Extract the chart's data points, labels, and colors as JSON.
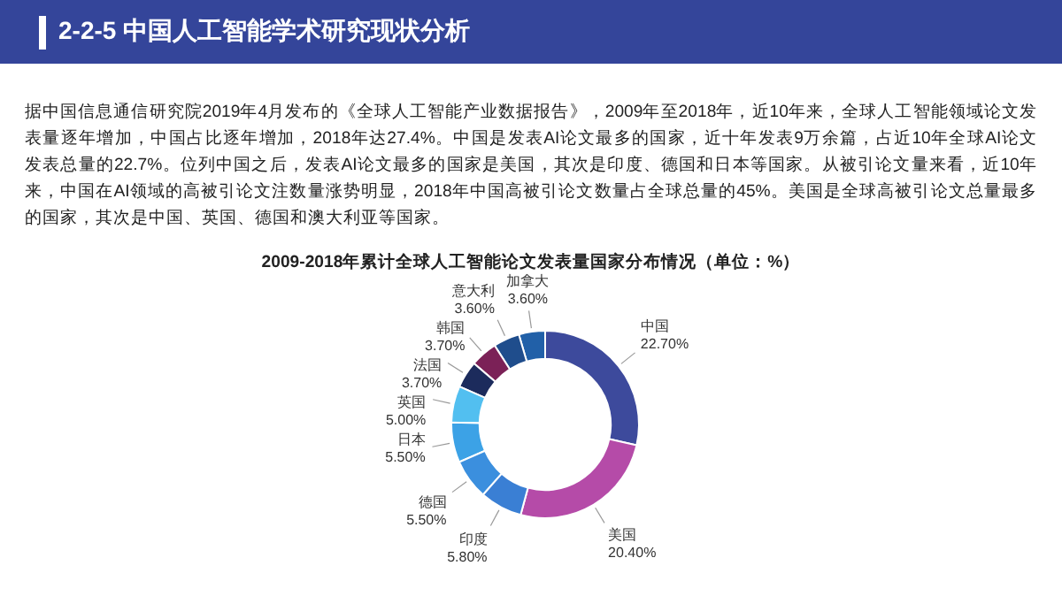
{
  "chart_data": {
    "type": "donut",
    "title": "2009-2018年累计全球人工智能论文发表量国家分布情况（单位：%）",
    "annotations": [
      "2-2-5  中国人工智能学术研究现状分析",
      "据中国信息通信研究院2019年4月发布的《全球人工智能产业数据报告》，2009年至2018年，近10年来，全球人工智能领域论文发表量逐年增加，中国占比逐年增加，2018年达27.4%。中国是发表AI论文最多的国家，近十年发表9万余篇，占近10年全球AI论文发表总量的22.7%。位列中国之后，发表AI论文最多的国家是美国，其次是印度、德国和日本等国家。从被引论文量来看，近10年来，中国在AI领域的高被引论文注数量涨势明显，2018年中国高被引论文数量占全球总量的45%。美国是全球高被引论文总量最多的国家，其次是中国、英国、德国和澳大利亚等国家。"
    ],
    "categories": [
      "中国",
      "美国",
      "印度",
      "德国",
      "日本",
      "英国",
      "法国",
      "韩国",
      "意大利",
      "加拿大"
    ],
    "values": [
      22.7,
      20.4,
      5.8,
      5.5,
      5.5,
      5.0,
      3.7,
      3.7,
      3.6,
      3.6
    ],
    "value_labels": [
      "22.70%",
      "20.40%",
      "5.80%",
      "5.50%",
      "5.50%",
      "5.00%",
      "3.70%",
      "3.70%",
      "3.60%",
      "3.60%"
    ],
    "colors": [
      "#3d4a9c",
      "#b54ba8",
      "#3a7fd4",
      "#3b8fde",
      "#3ca2e6",
      "#52bff0",
      "#1c2b5c",
      "#7b2157",
      "#1f4d8c",
      "#2160a8"
    ]
  }
}
